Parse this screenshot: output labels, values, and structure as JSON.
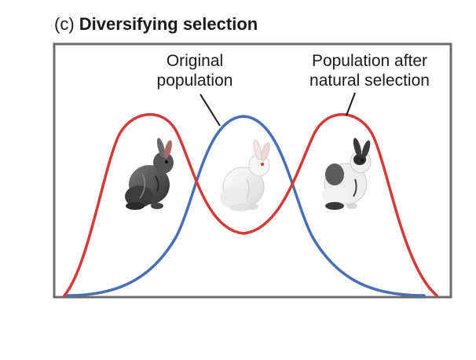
{
  "figure": {
    "title_prefix": "(c)",
    "title_main": "Diversifying selection",
    "labels": {
      "original_line1": "Original",
      "original_line2": "population",
      "after_line1": "Population after",
      "after_line2": "natural selection"
    },
    "colors": {
      "original_curve": "#4a6fb5",
      "after_curve": "#d43a3a",
      "frame": "#6b6b6b",
      "rabbit_dark": "#5a5a5a",
      "rabbit_white": "#f4f4f4",
      "rabbit_mixed": "#e6e6e6"
    },
    "icons": [
      "dark-rabbit-icon",
      "white-rabbit-icon",
      "black-white-rabbit-icon"
    ]
  }
}
